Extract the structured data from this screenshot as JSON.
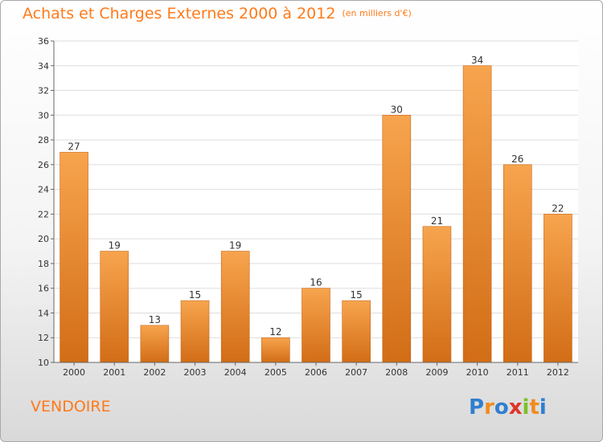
{
  "chart_data": {
    "type": "bar",
    "title": "Achats et Charges Externes 2000 à 2012",
    "subtitle": "(en milliers d'€)",
    "categories": [
      "2000",
      "2001",
      "2002",
      "2003",
      "2004",
      "2005",
      "2006",
      "2007",
      "2008",
      "2009",
      "2010",
      "2011",
      "2012"
    ],
    "values": [
      27,
      19,
      13,
      15,
      19,
      12,
      16,
      15,
      30,
      21,
      34,
      26,
      22
    ],
    "ylim": [
      10,
      36
    ],
    "yticks": [
      10,
      12,
      14,
      16,
      18,
      20,
      22,
      24,
      26,
      28,
      30,
      32,
      34,
      36
    ],
    "grid": true,
    "bar_color_top": "#f7a44e",
    "bar_color_bottom": "#d26d16"
  },
  "commune": "VENDOIRE",
  "logo": {
    "letters": [
      "P",
      "r",
      "o",
      "x",
      "i",
      "t",
      "i"
    ],
    "colors": [
      "#2f7fd0",
      "#f08c1e",
      "#2f7fd0",
      "#e0342b",
      "#7cbf2a",
      "#f08c1e",
      "#2f7fd0"
    ]
  }
}
